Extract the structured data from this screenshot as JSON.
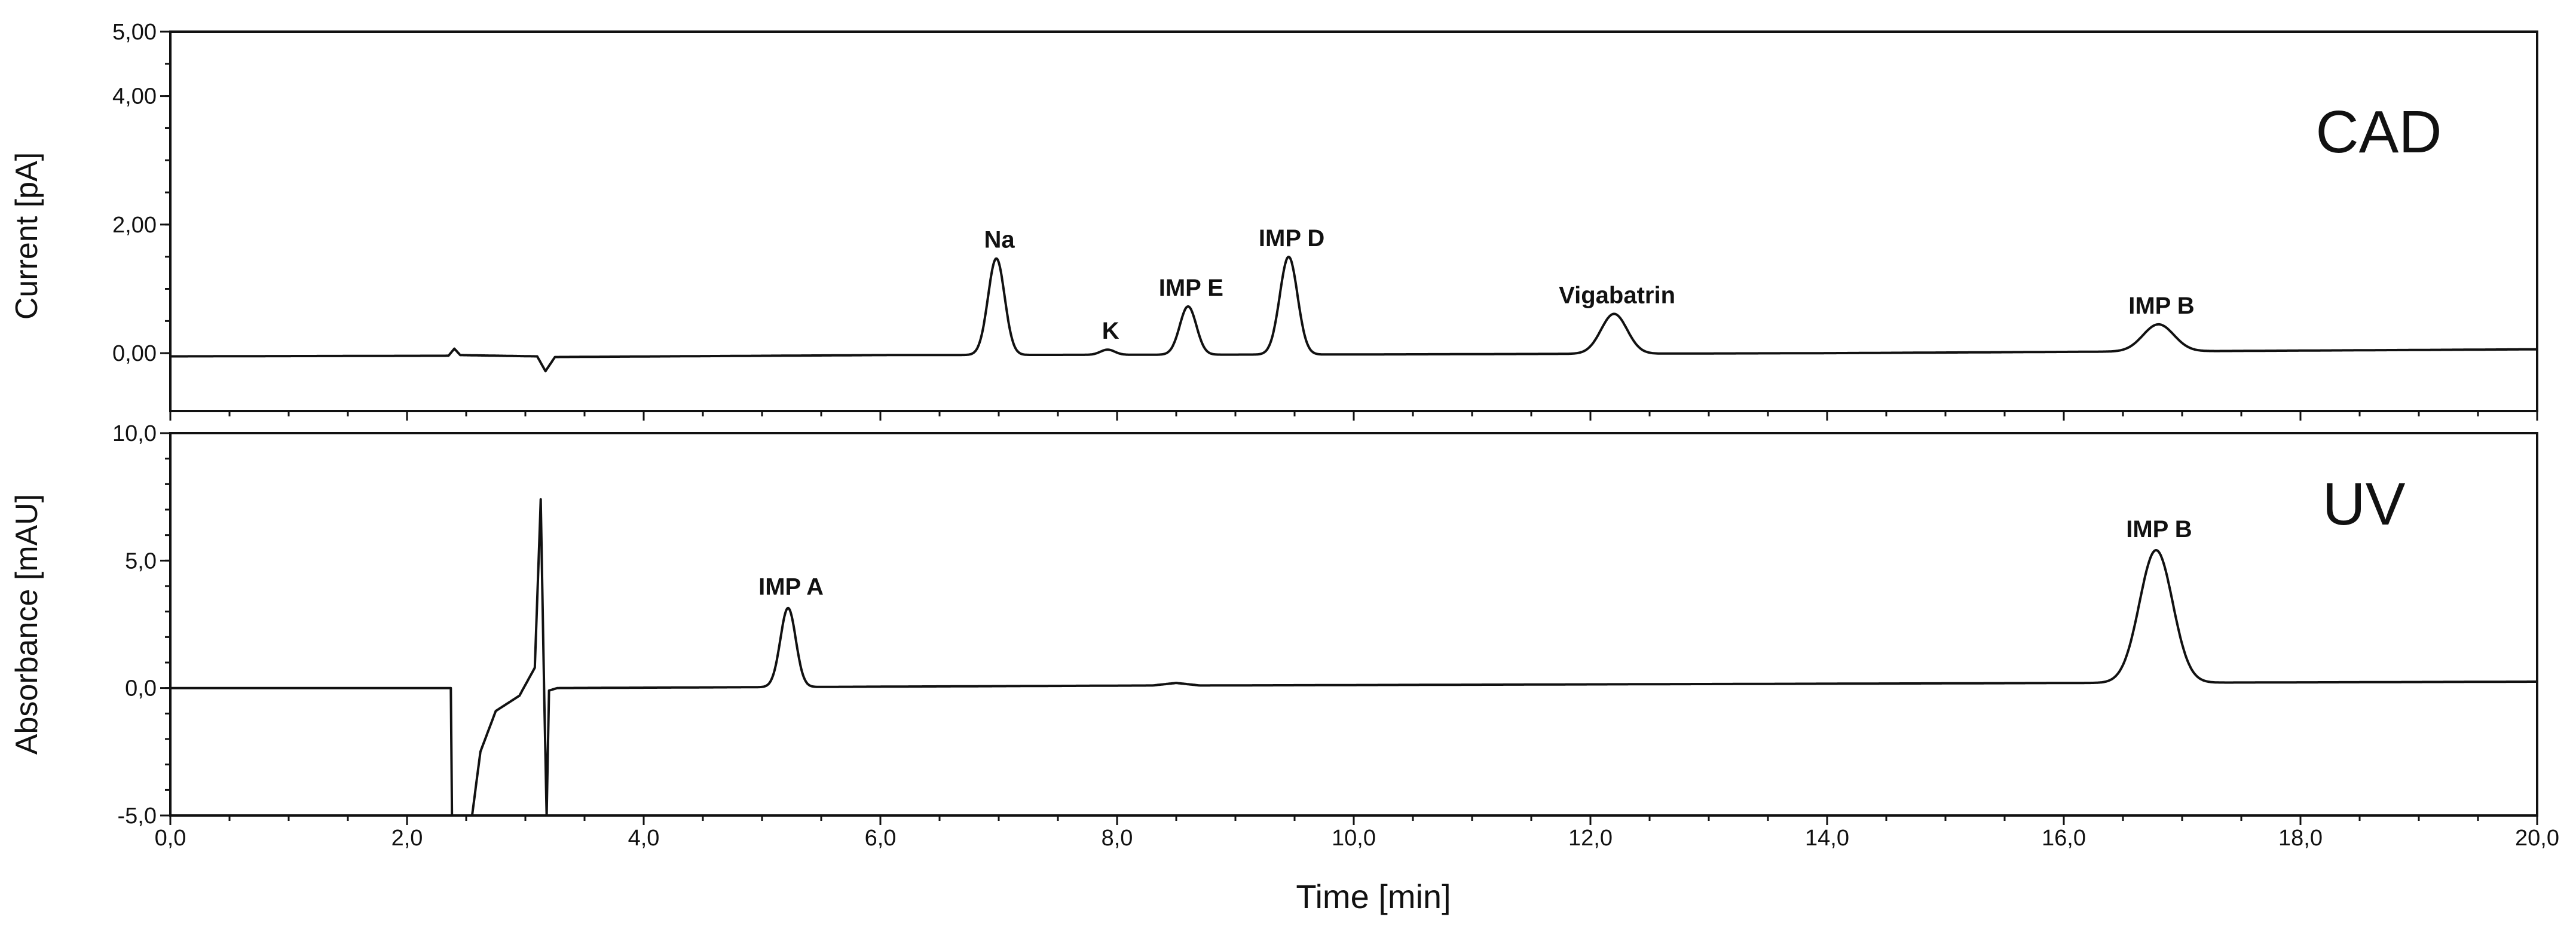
{
  "chart_data": [
    {
      "type": "line",
      "detector": "CAD",
      "ylabel": "Current [pA]",
      "ylim": [
        -0.9,
        5.0
      ],
      "yticks": [
        {
          "value": 5.0,
          "label": "5,00"
        },
        {
          "value": 4.0,
          "label": "4,00"
        },
        {
          "value": 2.0,
          "label": "2,00"
        },
        {
          "value": 0.0,
          "label": "0,00"
        }
      ],
      "baseline": [
        {
          "x": 0.0,
          "y": -0.05
        },
        {
          "x": 2.35,
          "y": -0.04
        },
        {
          "x": 2.4,
          "y": 0.07
        },
        {
          "x": 2.45,
          "y": -0.03
        },
        {
          "x": 3.1,
          "y": -0.05
        },
        {
          "x": 3.17,
          "y": -0.28
        },
        {
          "x": 3.25,
          "y": -0.06
        },
        {
          "x": 6.0,
          "y": -0.03
        },
        {
          "x": 10.0,
          "y": -0.02
        },
        {
          "x": 14.0,
          "y": 0.0
        },
        {
          "x": 18.0,
          "y": 0.04
        },
        {
          "x": 20.0,
          "y": 0.06
        }
      ],
      "peaks": [
        {
          "label": "Na",
          "rt": 6.98,
          "height": 1.5,
          "width": 0.07
        },
        {
          "label": "K",
          "rt": 7.92,
          "height": 0.08,
          "width": 0.06
        },
        {
          "label": "IMP E",
          "rt": 8.6,
          "height": 0.75,
          "width": 0.07
        },
        {
          "label": "IMP D",
          "rt": 9.45,
          "height": 1.52,
          "width": 0.075
        },
        {
          "label": "Vigabatrin",
          "rt": 12.2,
          "height": 0.62,
          "width": 0.11
        },
        {
          "label": "IMP B",
          "rt": 16.8,
          "height": 0.42,
          "width": 0.13
        }
      ]
    },
    {
      "type": "line",
      "detector": "UV",
      "ylabel": "Absorbance [mAU]",
      "ylim": [
        -5.0,
        10.0
      ],
      "yticks": [
        {
          "value": 10.0,
          "label": "10,0"
        },
        {
          "value": 5.0,
          "label": "5,0"
        },
        {
          "value": 0.0,
          "label": "0,0"
        },
        {
          "value": -5.0,
          "label": "-5,0"
        }
      ],
      "baseline": [
        {
          "x": 0.0,
          "y": 0.0
        },
        {
          "x": 2.37,
          "y": 0.0
        },
        {
          "x": 2.38,
          "y": -5.0
        },
        {
          "x": 2.55,
          "y": -5.0
        },
        {
          "x": 2.62,
          "y": -2.5
        },
        {
          "x": 2.75,
          "y": -0.9
        },
        {
          "x": 2.95,
          "y": -0.3
        },
        {
          "x": 3.08,
          "y": 0.8
        },
        {
          "x": 3.13,
          "y": 7.4
        },
        {
          "x": 3.16,
          "y": -0.5
        },
        {
          "x": 3.18,
          "y": -5.0
        },
        {
          "x": 3.2,
          "y": -0.1
        },
        {
          "x": 3.27,
          "y": 0.0
        },
        {
          "x": 8.3,
          "y": 0.1
        },
        {
          "x": 8.5,
          "y": 0.2
        },
        {
          "x": 8.7,
          "y": 0.1
        },
        {
          "x": 20.0,
          "y": 0.25
        }
      ],
      "peaks": [
        {
          "label": "IMP A",
          "rt": 5.22,
          "height": 3.1,
          "width": 0.065
        },
        {
          "label": "IMP B",
          "rt": 16.78,
          "height": 5.2,
          "width": 0.14
        }
      ]
    }
  ],
  "xaxis": {
    "label": "Time [min]",
    "xlim": [
      0.0,
      20.0
    ],
    "ticks": [
      {
        "value": 0,
        "label": "0,0"
      },
      {
        "value": 2,
        "label": "2,0"
      },
      {
        "value": 4,
        "label": "4,0"
      },
      {
        "value": 6,
        "label": "6,0"
      },
      {
        "value": 8,
        "label": "8,0"
      },
      {
        "value": 10,
        "label": "10,0"
      },
      {
        "value": 12,
        "label": "12,0"
      },
      {
        "value": 14,
        "label": "14,0"
      },
      {
        "value": 16,
        "label": "16,0"
      },
      {
        "value": 18,
        "label": "18,0"
      },
      {
        "value": 20,
        "label": "20,0"
      }
    ]
  }
}
